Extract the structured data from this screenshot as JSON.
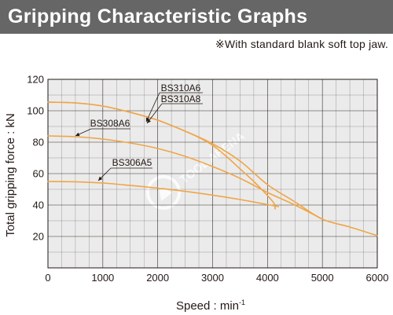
{
  "header": {
    "title": "Gripping Characteristic Graphs",
    "note": "※With standard blank soft top jaw."
  },
  "watermark": {
    "text": "TOOL ARENA"
  },
  "colors": {
    "title_bg": "#666666",
    "plot_bg": "#ebebeb",
    "grid": "#231815",
    "series": "#f0a546",
    "text": "#231815"
  },
  "chart_data": {
    "type": "line",
    "title": "",
    "xlabel": "Speed : min",
    "xlabel_superscript": "-1",
    "ylabel": "Total gripping force : kN",
    "xlim": [
      0,
      6000
    ],
    "ylim": [
      0,
      120
    ],
    "xticks": [
      0,
      1000,
      2000,
      3000,
      4000,
      5000,
      6000
    ],
    "yticks": [
      20,
      40,
      60,
      80,
      100,
      120
    ],
    "grid": true,
    "series": [
      {
        "name": "BS310A6",
        "x": [
          0,
          500,
          1000,
          1500,
          2000,
          2500,
          3000,
          3500,
          4000,
          4500,
          5000,
          5500,
          6000
        ],
        "y": [
          105.5,
          105,
          103,
          99,
          94,
          87,
          79,
          68,
          53,
          42,
          31,
          26,
          20.5
        ]
      },
      {
        "name": "BS310A8",
        "x": [
          0,
          500,
          1000,
          1500,
          2000,
          2500,
          2750,
          3000,
          3250,
          3500,
          3750,
          4000,
          4120,
          4140
        ],
        "y": [
          105.5,
          105,
          103,
          99,
          94,
          87,
          83,
          78,
          71,
          63,
          55,
          46,
          41,
          37.5
        ]
      },
      {
        "name": "BS308A6",
        "x": [
          0,
          500,
          1000,
          1500,
          2000,
          2500,
          3000,
          3500,
          4000,
          4500,
          5000
        ],
        "y": [
          84,
          83.5,
          82,
          79.5,
          76,
          71,
          64.5,
          57,
          48,
          40,
          31
        ]
      },
      {
        "name": "BS306A5",
        "x": [
          0,
          500,
          1000,
          1500,
          2000,
          2500,
          3000,
          3500,
          4000,
          4200
        ],
        "y": [
          55,
          54.8,
          54,
          52.5,
          50.8,
          48.7,
          46.3,
          43.5,
          40.3,
          39
        ]
      }
    ],
    "labels": [
      {
        "text": "BS310A6",
        "series": "BS310A6"
      },
      {
        "text": "BS310A8",
        "series": "BS310A8"
      },
      {
        "text": "BS308A6",
        "series": "BS308A6"
      },
      {
        "text": "BS306A5",
        "series": "BS306A5"
      }
    ]
  }
}
